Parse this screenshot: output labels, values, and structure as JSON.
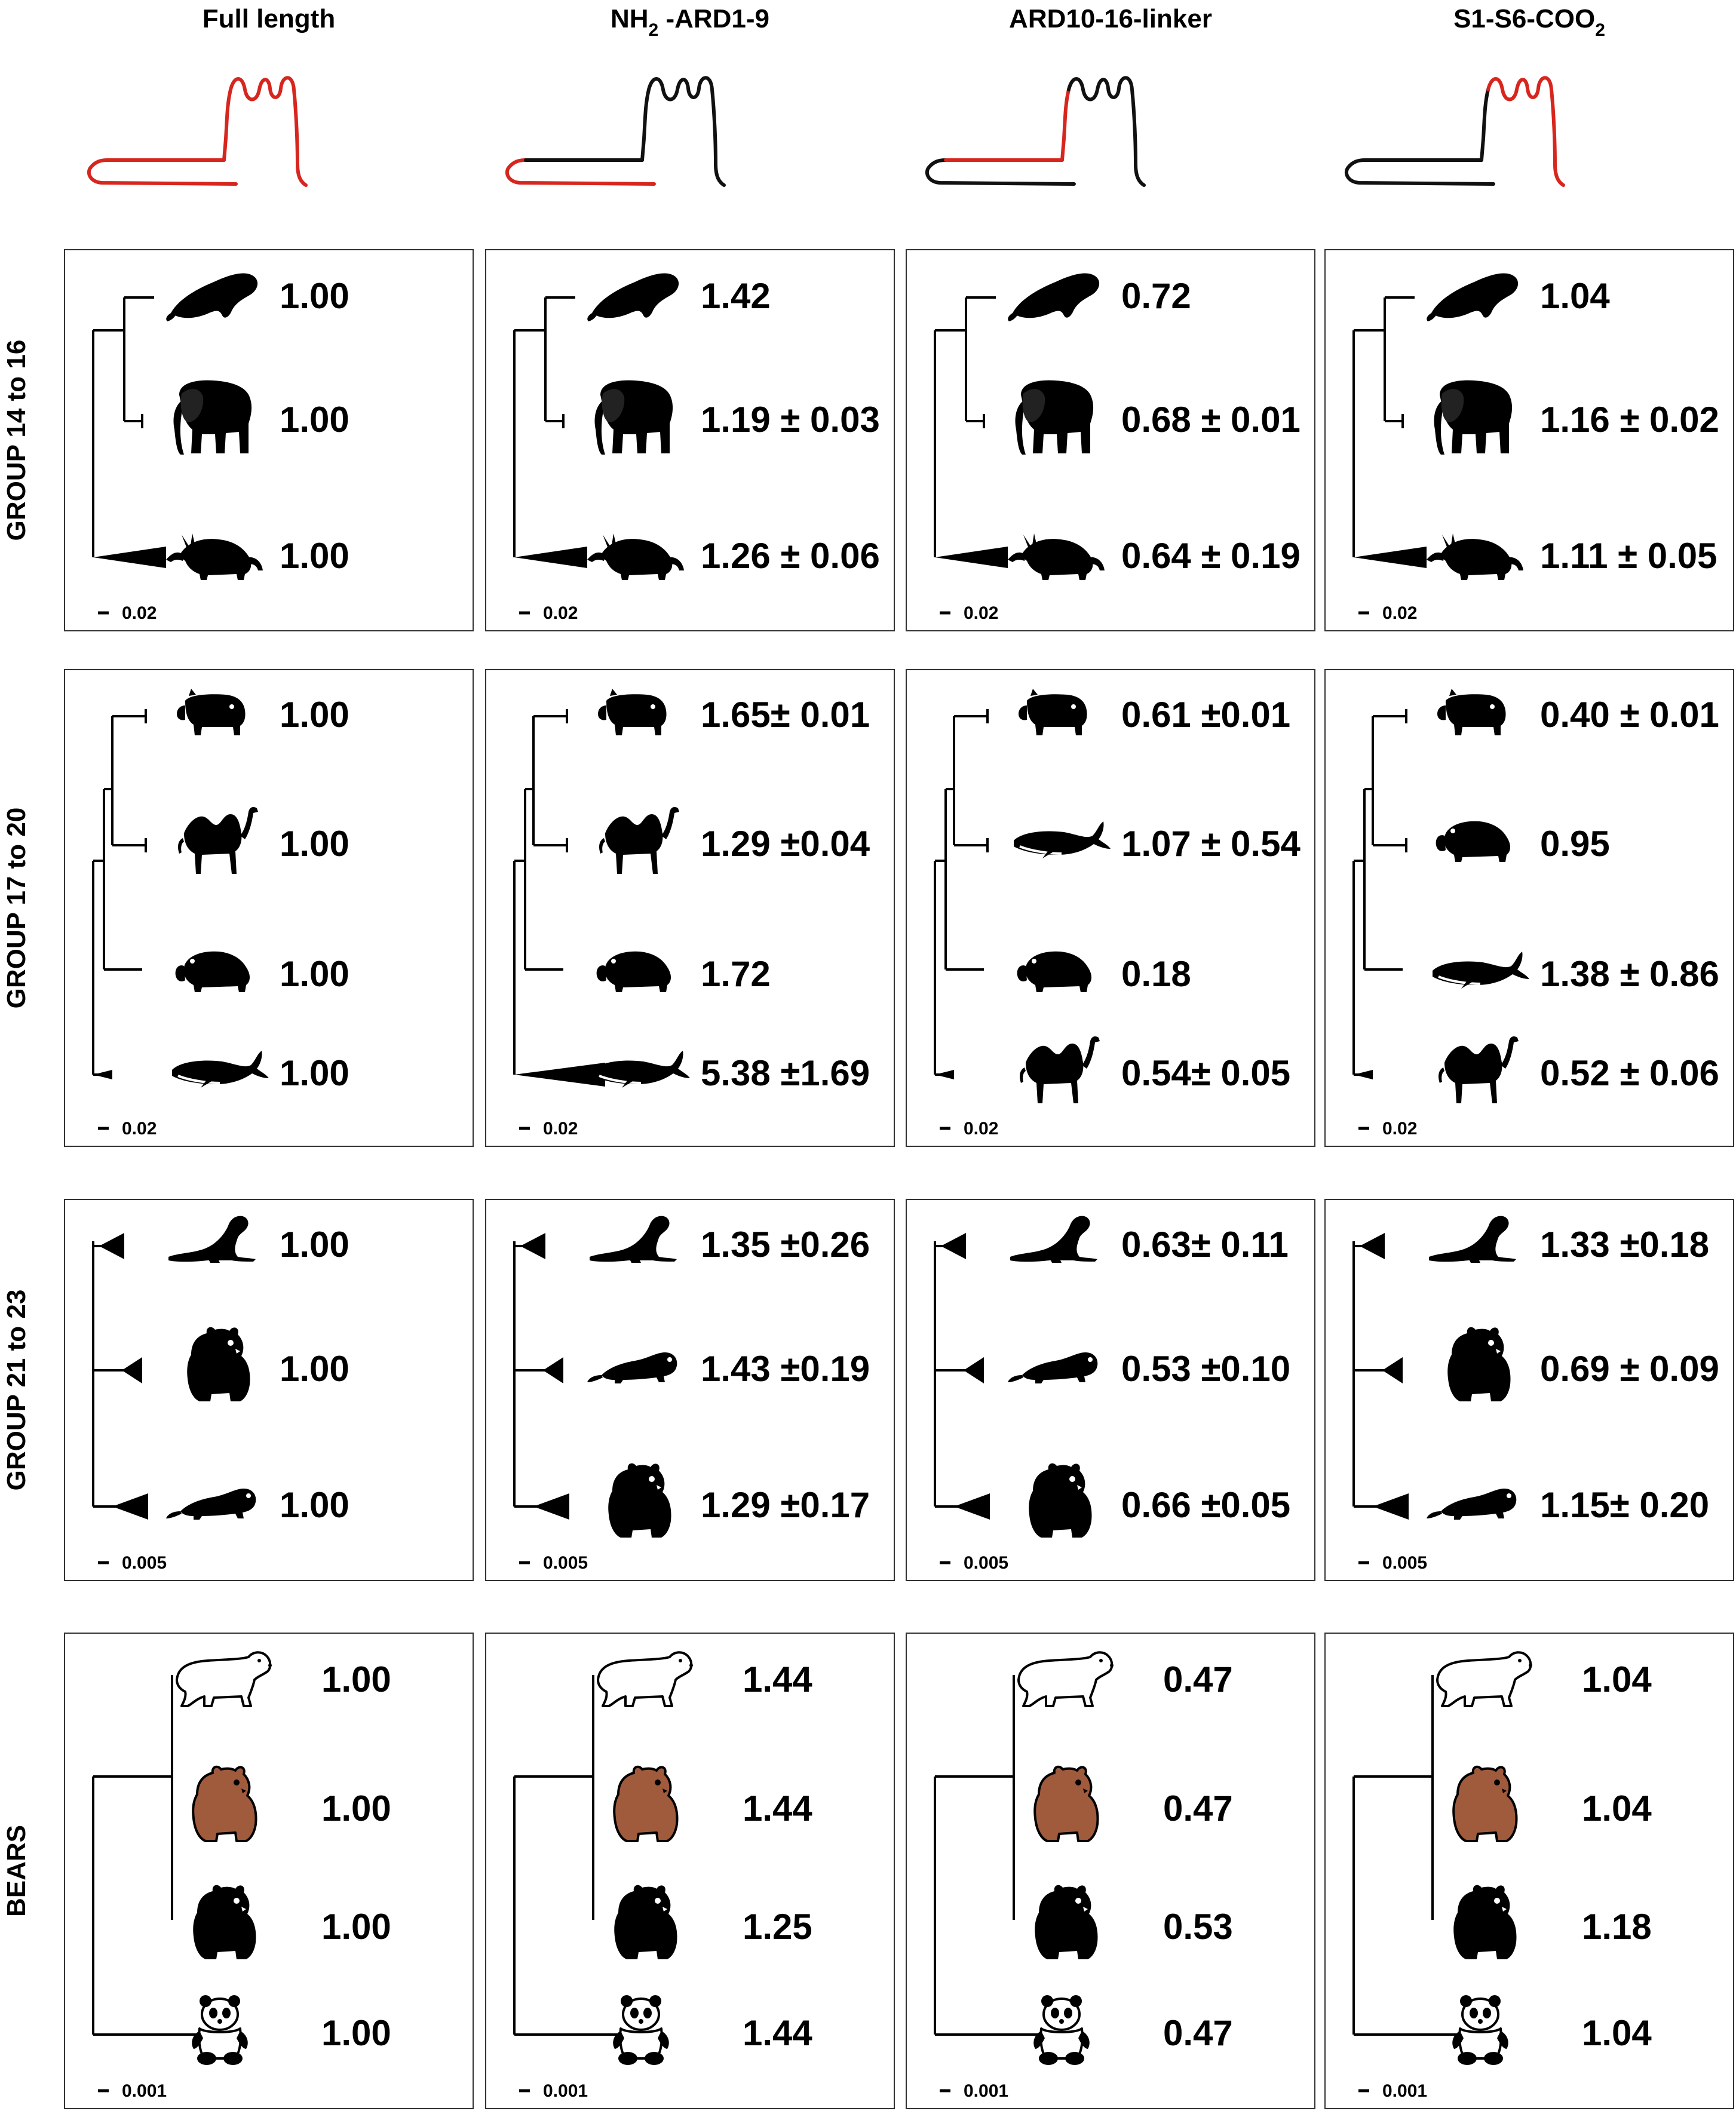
{
  "columns": [
    {
      "title": "Full length",
      "highlight": "all"
    },
    {
      "title": "NH",
      "sub": "2",
      "title2": " -ARD1-9",
      "highlight": "n"
    },
    {
      "title": "ARD10-16-linker",
      "highlight": "mid"
    },
    {
      "title": "S1-S6-COO",
      "sub": "2",
      "title2": "",
      "highlight": "c"
    }
  ],
  "colors": {
    "highlight": "#d7261e",
    "line": "#111111",
    "brown_bear": "#a05a3c",
    "ink": "#000000"
  },
  "panels": [
    {
      "label": "GROUP   14 to 16",
      "scale": "0.02",
      "cells": [
        {
          "taxa": [
            "sea-cow",
            "elephant",
            "aardvark"
          ],
          "values": [
            "1.00",
            "1.00",
            "1.00"
          ]
        },
        {
          "taxa": [
            "sea-cow",
            "elephant",
            "aardvark"
          ],
          "values": [
            "1.42",
            "1.19 ± 0.03",
            "1.26 ± 0.06"
          ]
        },
        {
          "taxa": [
            "sea-cow",
            "elephant",
            "aardvark"
          ],
          "values": [
            "0.72",
            "0.68 ± 0.01",
            "0.64 ± 0.19"
          ]
        },
        {
          "taxa": [
            "sea-cow",
            "elephant",
            "aardvark"
          ],
          "values": [
            "1.04",
            "1.16 ± 0.02",
            "1.11 ± 0.05"
          ]
        }
      ]
    },
    {
      "label": "GROUP   17 to 20",
      "scale": "0.02",
      "cells": [
        {
          "taxa": [
            "pig",
            "camel",
            "hippo",
            "whale"
          ],
          "values": [
            "1.00",
            "1.00",
            "1.00",
            "1.00"
          ]
        },
        {
          "taxa": [
            "pig",
            "camel",
            "hippo",
            "whale"
          ],
          "values": [
            "1.65± 0.01",
            "1.29 ±0.04",
            "1.72",
            "5.38 ±1.69"
          ]
        },
        {
          "taxa": [
            "pig",
            "whale",
            "hippo",
            "camel"
          ],
          "values": [
            "0.61 ±0.01",
            "1.07 ± 0.54",
            "0.18",
            "0.54± 0.05"
          ]
        },
        {
          "taxa": [
            "pig",
            "hippo",
            "whale",
            "camel"
          ],
          "values": [
            "0.40 ± 0.01",
            "0.95",
            "1.38 ± 0.86",
            "0.52 ± 0.06"
          ]
        }
      ]
    },
    {
      "label": "GROUP   21 to 23",
      "scale": "0.005",
      "cells": [
        {
          "taxa": [
            "seal",
            "bear",
            "otter"
          ],
          "values": [
            "1.00",
            "1.00",
            "1.00"
          ]
        },
        {
          "taxa": [
            "seal",
            "otter",
            "bear"
          ],
          "values": [
            "1.35 ±0.26",
            "1.43 ±0.19",
            "1.29 ±0.17"
          ]
        },
        {
          "taxa": [
            "seal",
            "otter",
            "bear"
          ],
          "values": [
            "0.63± 0.11",
            "0.53 ±0.10",
            "0.66 ±0.05"
          ]
        },
        {
          "taxa": [
            "seal",
            "bear",
            "otter"
          ],
          "values": [
            "1.33 ±0.18",
            "0.69 ± 0.09",
            "1.15± 0.20"
          ]
        }
      ]
    },
    {
      "label": "BEARS",
      "scale": "0.001",
      "cells": [
        {
          "taxa": [
            "polar-bear",
            "brown-bear",
            "black-bear",
            "panda"
          ],
          "values": [
            "1.00",
            "1.00",
            "1.00",
            "1.00"
          ]
        },
        {
          "taxa": [
            "polar-bear",
            "brown-bear",
            "black-bear",
            "panda"
          ],
          "values": [
            "1.44",
            "1.44",
            "1.25",
            "1.44"
          ]
        },
        {
          "taxa": [
            "polar-bear",
            "brown-bear",
            "black-bear",
            "panda"
          ],
          "values": [
            "0.47",
            "0.47",
            "0.53",
            "0.47"
          ]
        },
        {
          "taxa": [
            "polar-bear",
            "brown-bear",
            "black-bear",
            "panda"
          ],
          "values": [
            "1.04",
            "1.04",
            "1.18",
            "1.04"
          ]
        }
      ]
    }
  ]
}
